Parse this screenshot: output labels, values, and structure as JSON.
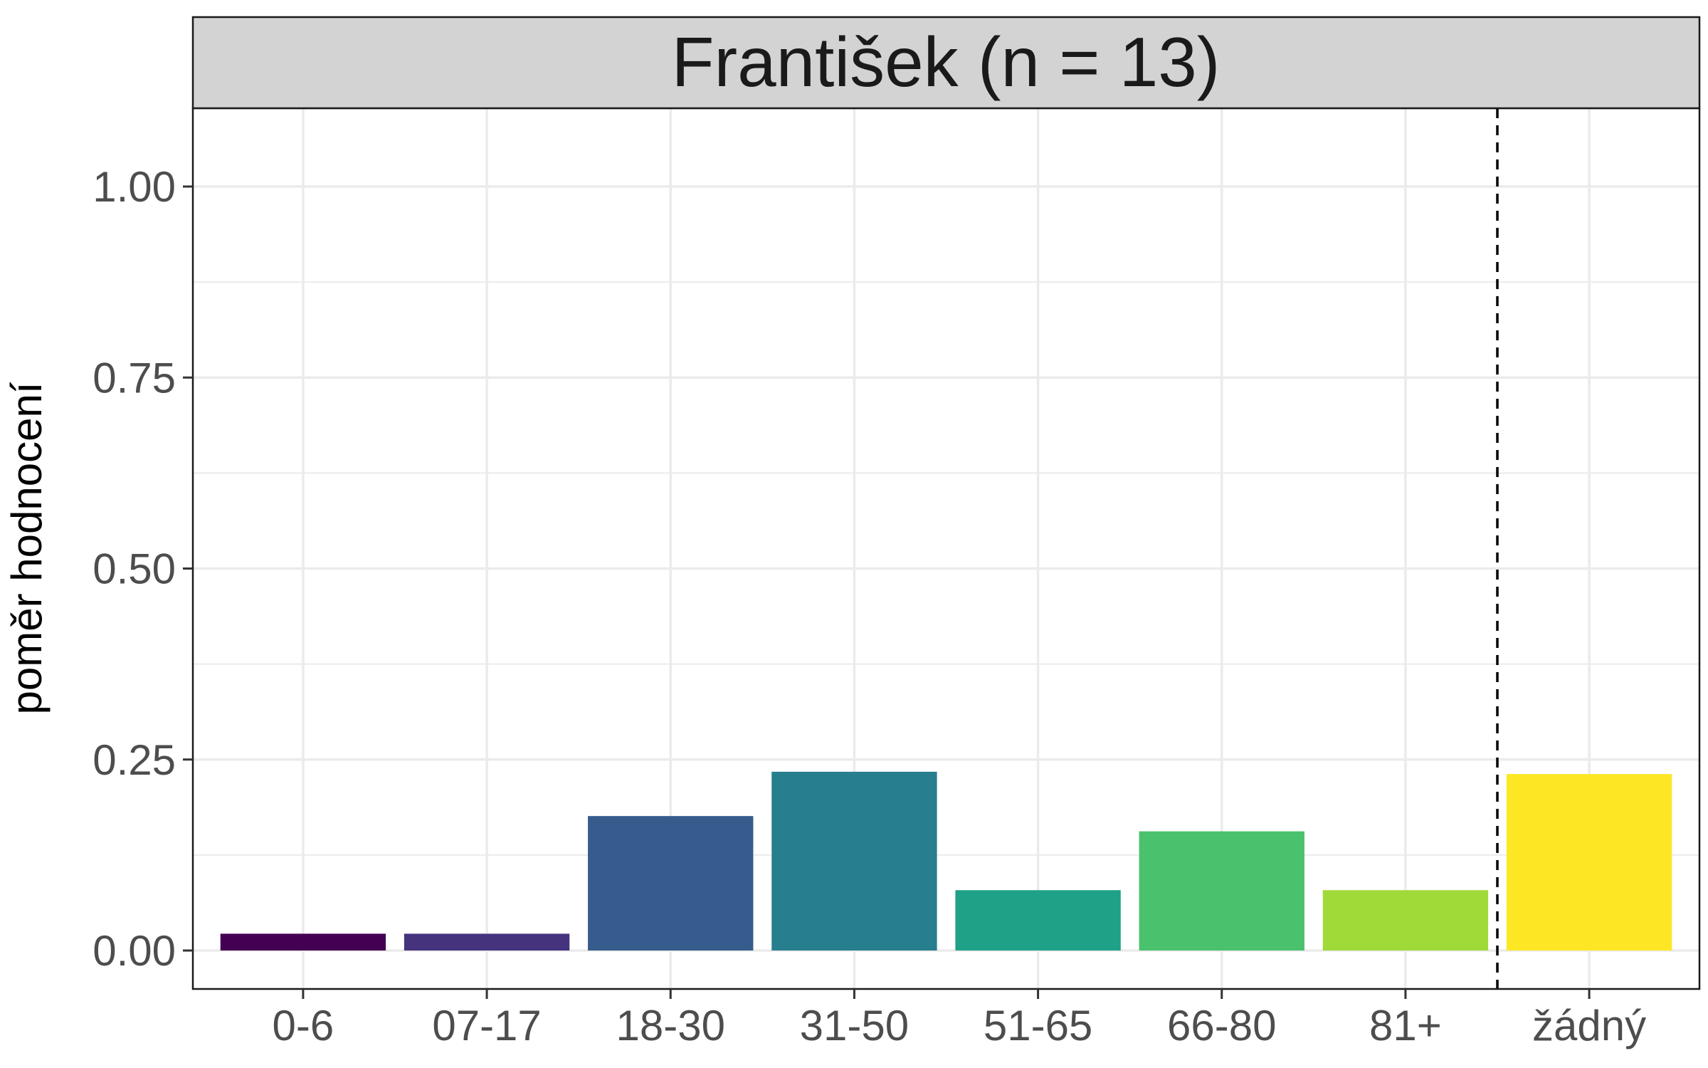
{
  "chart_data": {
    "type": "bar",
    "title": "František (n = 13)",
    "xlabel": "",
    "ylabel": "poměr hodnocení",
    "ylim": [
      0,
      1.1
    ],
    "yticks": [
      "0.00",
      "0.25",
      "0.50",
      "0.75",
      "1.00"
    ],
    "ytick_values": [
      0,
      0.25,
      0.5,
      0.75,
      1.0
    ],
    "y_minor_gridlines": [
      0.125,
      0.375,
      0.625,
      0.875
    ],
    "grid": true,
    "legend": "none",
    "categories": [
      "0-6",
      "07-17",
      "18-30",
      "31-50",
      "51-65",
      "66-80",
      "81+",
      "žádný"
    ],
    "values": [
      0.022,
      0.022,
      0.176,
      0.234,
      0.079,
      0.156,
      0.079,
      0.231
    ],
    "colors": [
      "#440154",
      "#46337e",
      "#365c8d",
      "#277f8e",
      "#1fa187",
      "#4ac16d",
      "#a0da39",
      "#fde725"
    ],
    "reference_line": {
      "between_categories": [
        "81+",
        "žádný"
      ],
      "style": "dashed",
      "color": "#000000"
    }
  }
}
